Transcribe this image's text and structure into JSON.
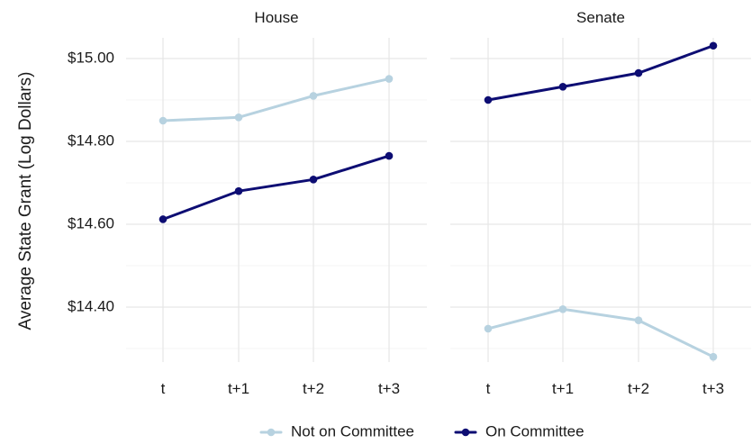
{
  "chart_data": {
    "type": "line",
    "facet_titles": [
      "House",
      "Senate"
    ],
    "categories": [
      "t",
      "t+1",
      "t+2",
      "t+3"
    ],
    "ylabel": "Average State Grant (Log Dollars)",
    "ylim": [
      14.27,
      15.05
    ],
    "yticks": [
      14.4,
      14.6,
      14.8,
      15.0
    ],
    "ytick_labels": [
      "$14.40",
      "$14.60",
      "$14.80",
      "$15.00"
    ],
    "legend_position": "bottom",
    "legend": [
      {
        "name": "Not on Committee",
        "color": "#b7d2e0"
      },
      {
        "name": "On Committee",
        "color": "#0d0d73"
      }
    ],
    "panels": [
      {
        "title": "House",
        "series": [
          {
            "name": "Not on Committee",
            "color": "#b7d2e0",
            "values": [
              14.85,
              14.858,
              14.91,
              14.951
            ]
          },
          {
            "name": "On Committee",
            "color": "#0d0d73",
            "values": [
              14.612,
              14.68,
              14.708,
              14.765
            ]
          }
        ]
      },
      {
        "title": "Senate",
        "series": [
          {
            "name": "Not on Committee",
            "color": "#b7d2e0",
            "values": [
              14.348,
              14.395,
              14.368,
              14.28
            ]
          },
          {
            "name": "On Committee",
            "color": "#0d0d73",
            "values": [
              14.9,
              14.932,
              14.965,
              15.031
            ]
          }
        ]
      }
    ]
  }
}
